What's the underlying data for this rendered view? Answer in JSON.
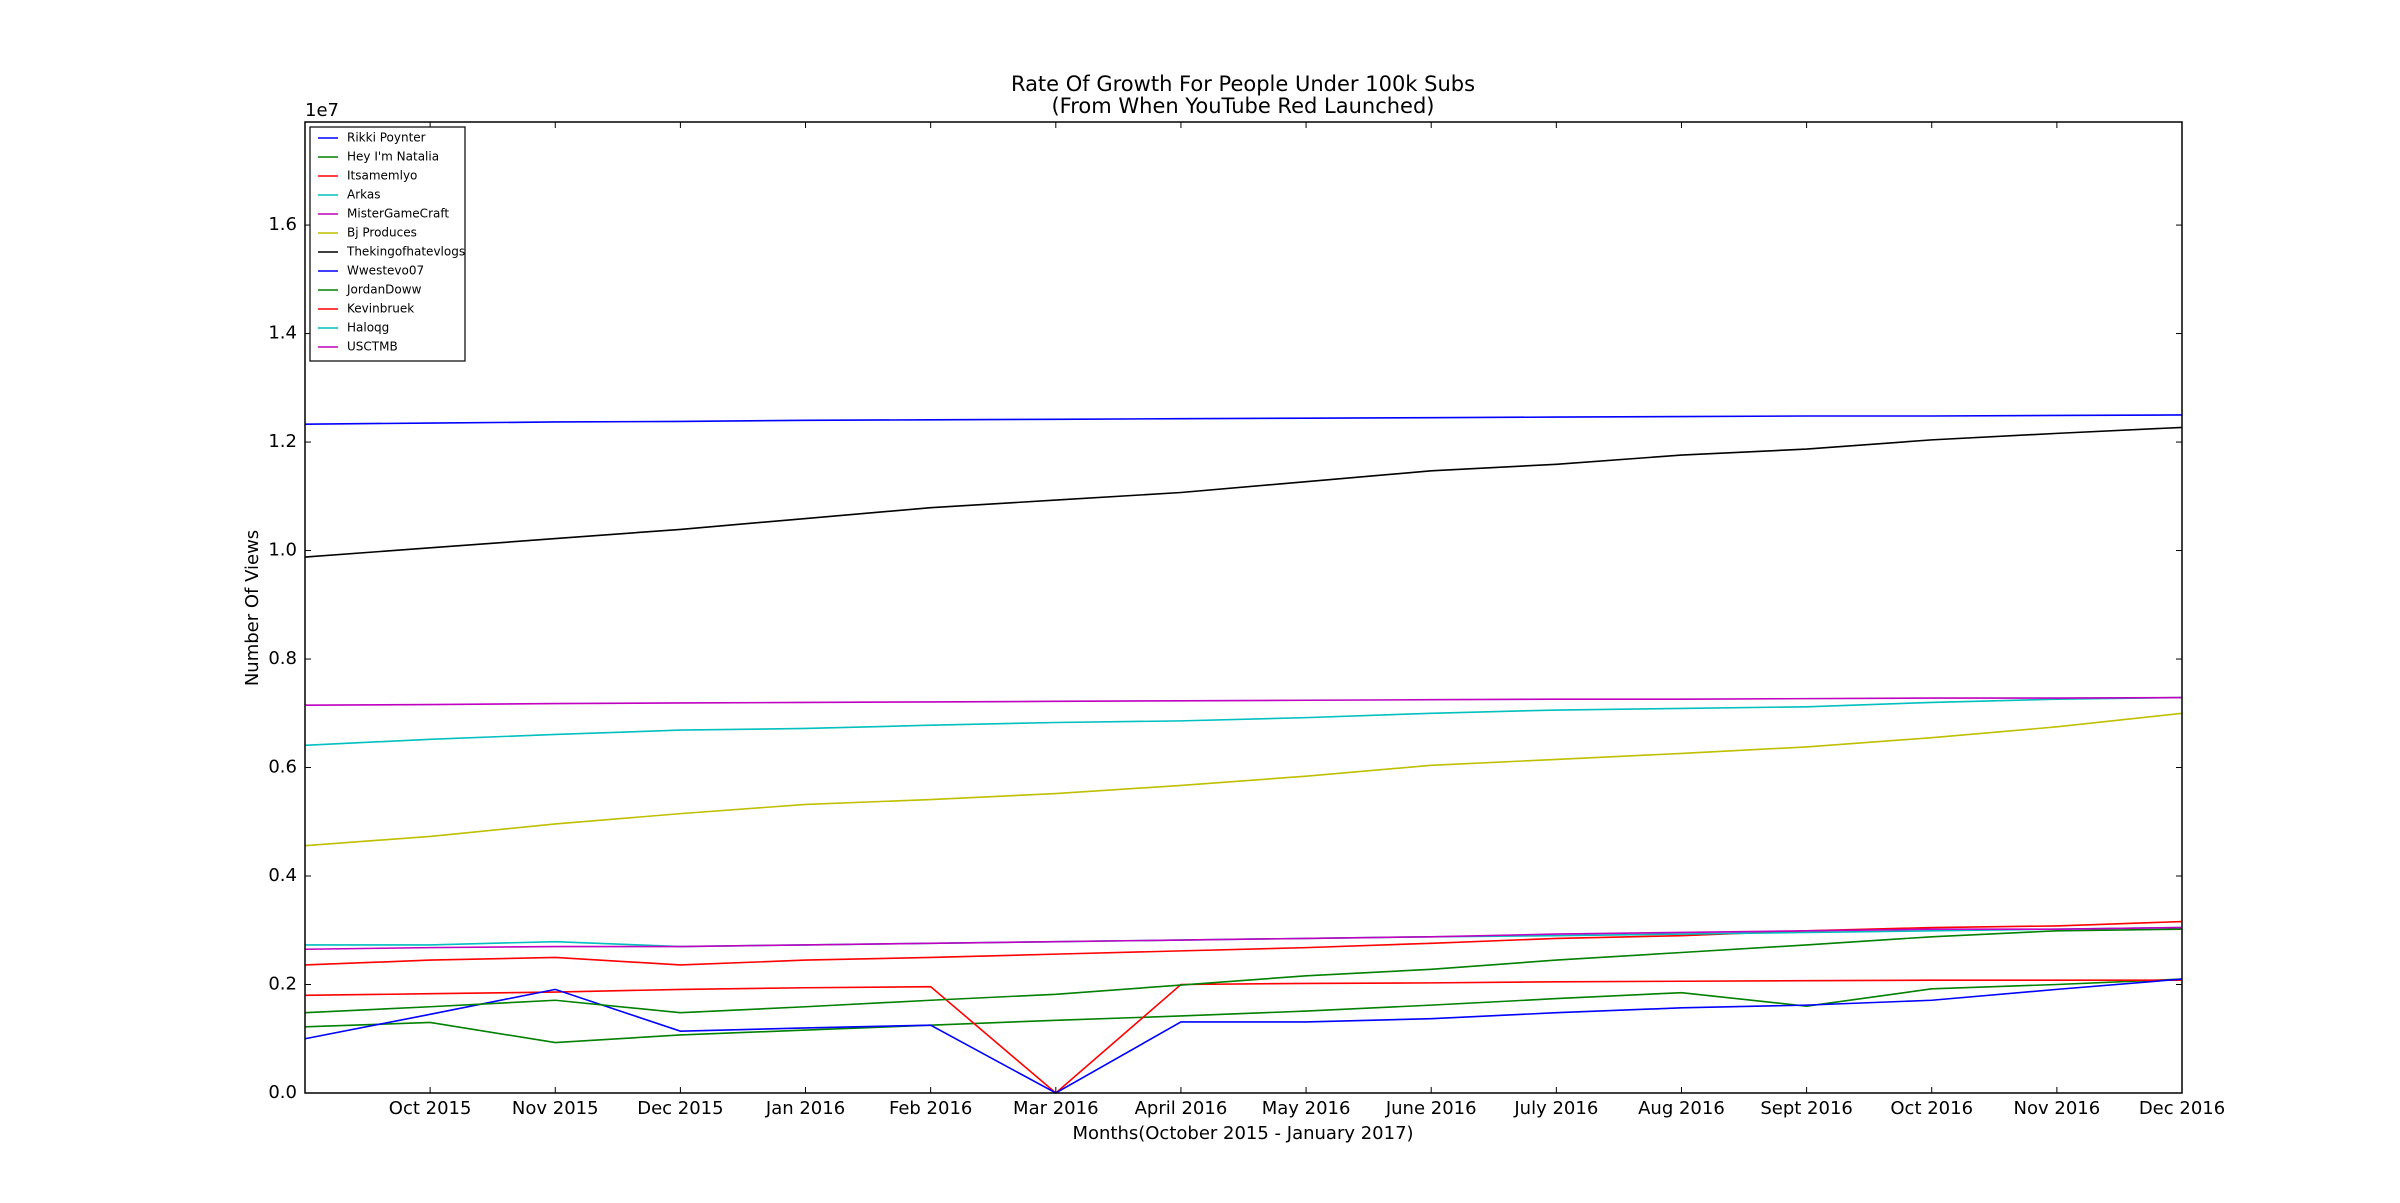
{
  "chart_data": {
    "type": "line",
    "title": "Rate Of Growth For People Under 100k Subs",
    "subtitle": "(From When YouTube Red Launched)",
    "x_label": "Months(October 2015 - January 2017)",
    "y_label": "Number Of Views",
    "y_offset_label": "1e7",
    "categories": [
      null,
      "Oct 2015",
      "Nov 2015",
      "Dec 2015",
      "Jan 2016",
      "Feb 2016",
      "Mar 2016",
      "April 2016",
      "May 2016",
      "June 2016",
      "July 2016",
      "Aug 2016",
      "Sept 2016",
      "Oct 2016",
      "Nov 2016",
      "Dec 2016"
    ],
    "ylim": [
      0,
      17900000
    ],
    "yticks": [
      {
        "value": 0,
        "label": "0.0"
      },
      {
        "value": 2000000,
        "label": "0.2"
      },
      {
        "value": 4000000,
        "label": "0.4"
      },
      {
        "value": 6000000,
        "label": "0.6"
      },
      {
        "value": 8000000,
        "label": "0.8"
      },
      {
        "value": 10000000,
        "label": "1.0"
      },
      {
        "value": 12000000,
        "label": "1.2"
      },
      {
        "value": 14000000,
        "label": "1.4"
      },
      {
        "value": 16000000,
        "label": "1.6"
      }
    ],
    "legend": "upper left",
    "series": [
      {
        "name": "Rikki Poynter",
        "color": "#0000ff",
        "values": [
          12330000,
          12350000,
          12370000,
          12380000,
          12400000,
          12410000,
          12420000,
          12430000,
          12440000,
          12450000,
          12460000,
          12470000,
          12480000,
          12480000,
          12490000,
          12500000
        ]
      },
      {
        "name": "Hey I'm Natalia",
        "color": "#008000",
        "values": [
          1220000,
          1300000,
          930000,
          1070000,
          1160000,
          1250000,
          1340000,
          1420000,
          1510000,
          1620000,
          1740000,
          1850000,
          1600000,
          1920000,
          2000000,
          2100000
        ]
      },
      {
        "name": "Itsamemlyo",
        "color": "#ff0000",
        "values": [
          1800000,
          1830000,
          1860000,
          1910000,
          1940000,
          1960000,
          0,
          2000000,
          2020000,
          2030000,
          2050000,
          2060000,
          2070000,
          2080000,
          2080000,
          2080000
        ]
      },
      {
        "name": "Arkas",
        "color": "#00bfbf",
        "values": [
          6410000,
          6520000,
          6610000,
          6690000,
          6720000,
          6780000,
          6830000,
          6860000,
          6920000,
          7000000,
          7060000,
          7090000,
          7120000,
          7200000,
          7260000,
          7290000
        ]
      },
      {
        "name": "MisterGameCraft",
        "color": "#bf00bf",
        "values": [
          7150000,
          7160000,
          7180000,
          7190000,
          7200000,
          7210000,
          7220000,
          7230000,
          7240000,
          7250000,
          7260000,
          7260000,
          7270000,
          7280000,
          7280000,
          7290000
        ]
      },
      {
        "name": "Bj Produces",
        "color": "#bfbf00",
        "values": [
          4560000,
          4730000,
          4960000,
          5150000,
          5320000,
          5410000,
          5520000,
          5670000,
          5840000,
          6040000,
          6150000,
          6260000,
          6380000,
          6550000,
          6750000,
          7000000
        ]
      },
      {
        "name": "Thekingofhatevlogs",
        "color": "#000000",
        "values": [
          9880000,
          10050000,
          10220000,
          10390000,
          10590000,
          10790000,
          10930000,
          11070000,
          11270000,
          11470000,
          11590000,
          11760000,
          11870000,
          12040000,
          12160000,
          12270000
        ]
      },
      {
        "name": "Wwestevo07",
        "color": "#0000ff",
        "values": [
          1000000,
          1450000,
          1910000,
          1140000,
          1200000,
          1250000,
          0,
          1310000,
          1310000,
          1370000,
          1480000,
          1570000,
          1620000,
          1710000,
          1910000,
          2100000
        ]
      },
      {
        "name": "JordanDoww",
        "color": "#008000",
        "values": [
          1480000,
          1590000,
          1710000,
          1480000,
          1590000,
          1710000,
          1820000,
          1990000,
          2160000,
          2280000,
          2450000,
          2590000,
          2730000,
          2880000,
          2990000,
          3020000
        ]
      },
      {
        "name": "Kevinbruek",
        "color": "#ff0000",
        "values": [
          2360000,
          2450000,
          2500000,
          2360000,
          2450000,
          2500000,
          2560000,
          2620000,
          2680000,
          2760000,
          2850000,
          2900000,
          2990000,
          3050000,
          3080000,
          3160000
        ]
      },
      {
        "name": "Haloqg",
        "color": "#00bfbf",
        "values": [
          2730000,
          2730000,
          2790000,
          2700000,
          2730000,
          2760000,
          2790000,
          2820000,
          2850000,
          2880000,
          2900000,
          2930000,
          2960000,
          2990000,
          3020000,
          3050000
        ]
      },
      {
        "name": "USCTMB",
        "color": "#bf00bf",
        "values": [
          2650000,
          2680000,
          2700000,
          2700000,
          2730000,
          2760000,
          2790000,
          2820000,
          2850000,
          2880000,
          2930000,
          2960000,
          2990000,
          3020000,
          3020000,
          3050000
        ]
      }
    ]
  }
}
